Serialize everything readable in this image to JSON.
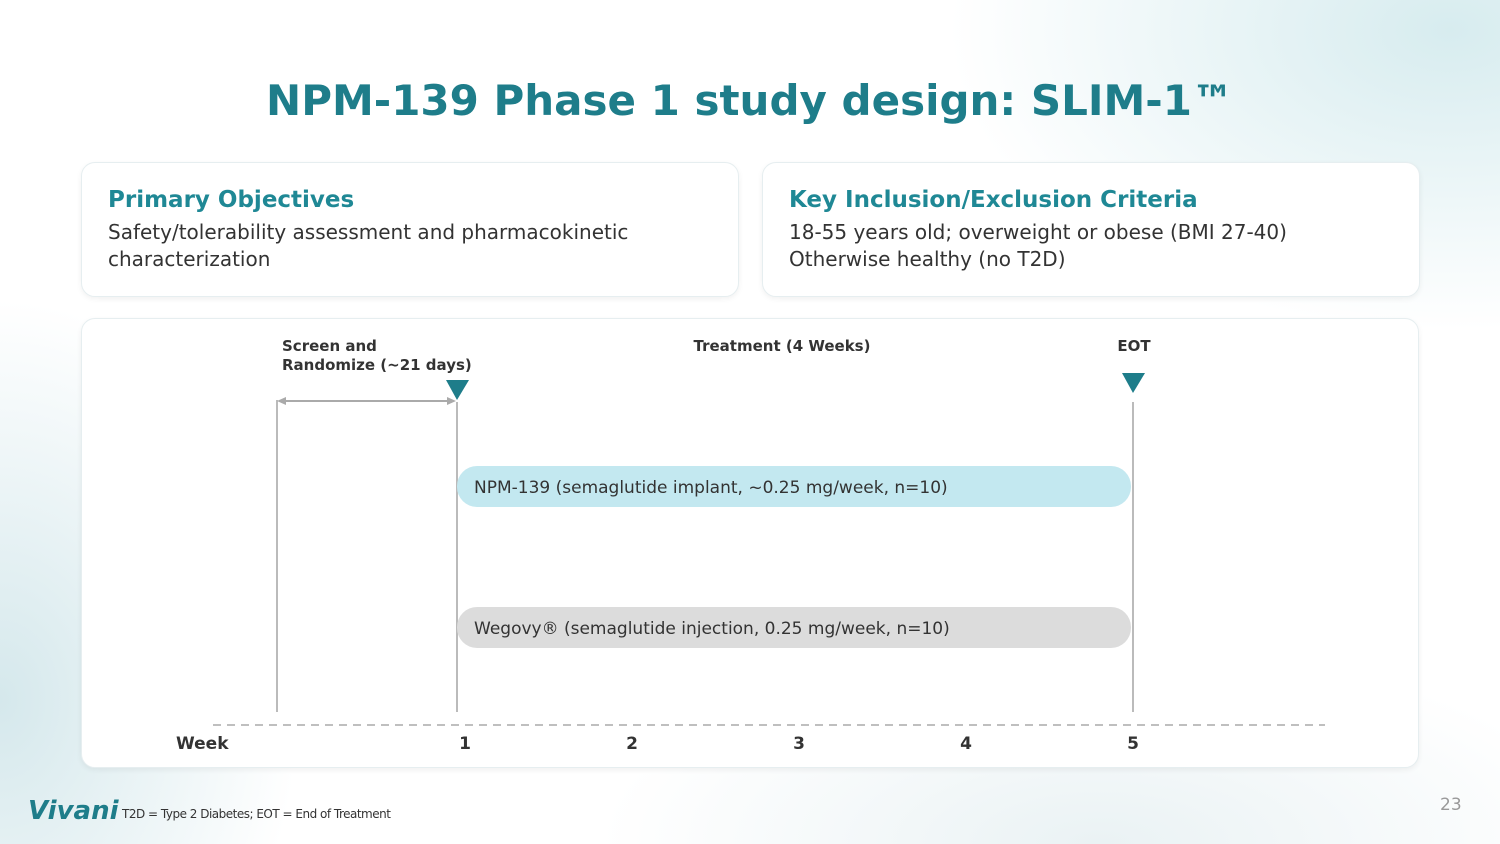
{
  "title": "NPM-139 Phase 1 study design: SLIM-1™",
  "cards": [
    {
      "heading": "Primary Objectives",
      "lines": [
        "Safety/tolerability assessment and pharmacokinetic",
        "characterization"
      ]
    },
    {
      "heading": "Key Inclusion/Exclusion Criteria",
      "lines": [
        "18-55 years old; overweight or obese (BMI 27-40)",
        "Otherwise healthy (no T2D)"
      ]
    }
  ],
  "timeline": {
    "phases": [
      {
        "lines": [
          "Screen and",
          "Randomize (~21 days)"
        ]
      },
      {
        "lines": [
          "Treatment (4 Weeks)"
        ]
      },
      {
        "lines": [
          "EOT"
        ]
      }
    ],
    "arms": [
      "NPM-139 (semaglutide implant, ~0.25 mg/week, n=10)",
      "Wegovy® (semaglutide injection, 0.25 mg/week, n=10)"
    ],
    "axis_label": "Week",
    "weeks": [
      1,
      2,
      3,
      4,
      5
    ]
  },
  "footer": {
    "logo": "Vivani",
    "footnote": "T2D = Type 2 Diabetes; EOT = End of Treatment",
    "page_number": "23"
  }
}
